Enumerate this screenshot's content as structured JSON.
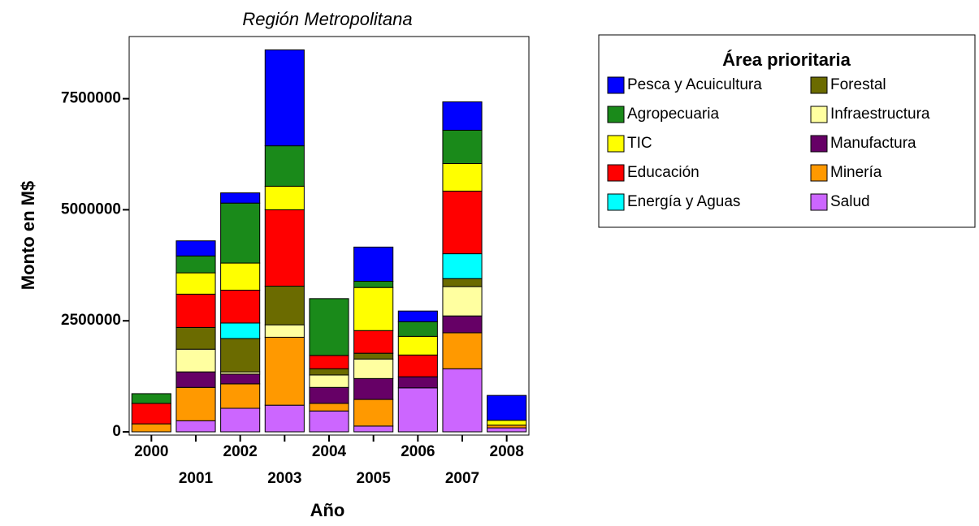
{
  "chart_data": {
    "type": "stacked_bar",
    "title": "Región Metropolitana",
    "x_label": "Año",
    "y_label": "Monto en M$",
    "legend_title": "Área prioritaria",
    "categories": [
      "2000",
      "2001",
      "2002",
      "2003",
      "2004",
      "2005",
      "2006",
      "2007",
      "2008"
    ],
    "ylim": [
      0,
      8900000
    ],
    "yticks": [
      0,
      2500000,
      5000000,
      7500000
    ],
    "series": [
      {
        "name": "Salud",
        "color": "#cc66ff",
        "values": [
          0,
          250000,
          530000,
          600000,
          470000,
          130000,
          990000,
          1420000,
          90000
        ]
      },
      {
        "name": "Minería",
        "color": "#ff9900",
        "values": [
          180000,
          750000,
          550000,
          1530000,
          170000,
          600000,
          0,
          810000,
          60000
        ]
      },
      {
        "name": "Manufactura",
        "color": "#660066",
        "values": [
          0,
          350000,
          220000,
          0,
          360000,
          470000,
          250000,
          380000,
          0
        ]
      },
      {
        "name": "Infraestructura",
        "color": "#ffffa0",
        "values": [
          0,
          510000,
          50000,
          280000,
          280000,
          440000,
          0,
          660000,
          0
        ]
      },
      {
        "name": "Forestal",
        "color": "#6b6b00",
        "values": [
          0,
          490000,
          750000,
          870000,
          140000,
          130000,
          0,
          180000,
          0
        ]
      },
      {
        "name": "Energía y Aguas",
        "color": "#00ffff",
        "values": [
          0,
          0,
          350000,
          0,
          0,
          0,
          0,
          560000,
          0
        ]
      },
      {
        "name": "Educación",
        "color": "#ff0000",
        "values": [
          460000,
          750000,
          740000,
          1720000,
          300000,
          510000,
          490000,
          1410000,
          0
        ]
      },
      {
        "name": "TIC",
        "color": "#ffff00",
        "values": [
          0,
          480000,
          610000,
          530000,
          0,
          970000,
          420000,
          620000,
          110000
        ]
      },
      {
        "name": "Agropecuaria",
        "color": "#1a8a1a",
        "values": [
          220000,
          380000,
          1350000,
          910000,
          1280000,
          140000,
          330000,
          750000,
          0
        ]
      },
      {
        "name": "Pesca y Acuicultura",
        "color": "#0000ff",
        "values": [
          0,
          340000,
          230000,
          2160000,
          0,
          770000,
          240000,
          640000,
          560000
        ]
      }
    ]
  }
}
